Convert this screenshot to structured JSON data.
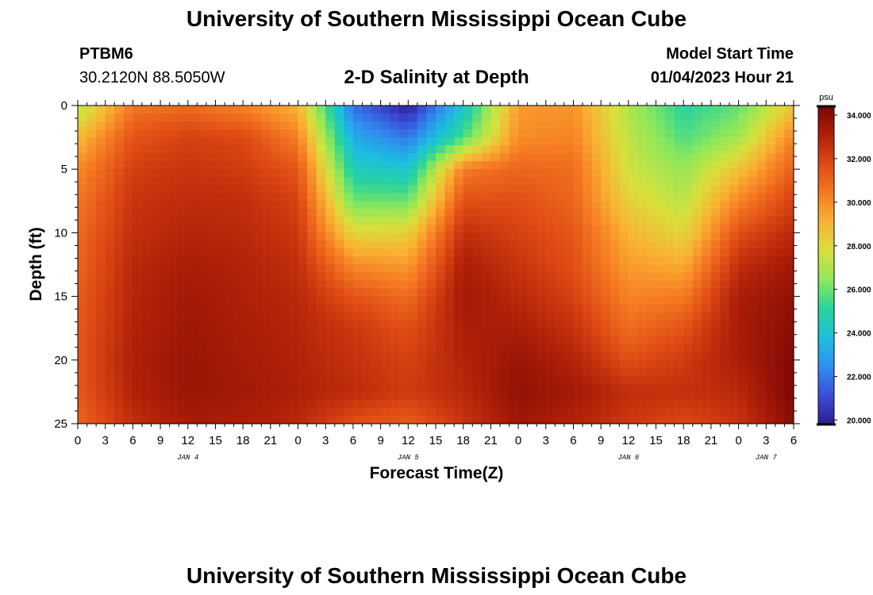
{
  "header": {
    "title": "University of Southern Mississippi Ocean Cube",
    "station_id": "PTBM6",
    "station_coords": "30.2120N  88.5050W",
    "plot_title": "2-D Salinity at Depth",
    "model_start_label": "Model Start Time",
    "model_start_value": "01/04/2023 Hour 21"
  },
  "footer": {
    "title": "University of Southern Mississippi Ocean Cube"
  },
  "colors": {
    "stops": [
      "#2c1c8e",
      "#3a4fd8",
      "#2f8ef0",
      "#1bc0dc",
      "#29d49a",
      "#8ee85a",
      "#d8e03c",
      "#f9b233",
      "#f57a22",
      "#de4a14",
      "#b02008",
      "#7a0606"
    ]
  },
  "chart_data": {
    "type": "heatmap",
    "title": "2-D Salinity at Depth",
    "xlabel": "Forecast Time(Z)",
    "ylabel": "Depth (ft)",
    "x_tick_labels": [
      "0",
      "3",
      "6",
      "9",
      "12",
      "15",
      "18",
      "21",
      "0",
      "3",
      "6",
      "9",
      "12",
      "15",
      "18",
      "21",
      "0",
      "3",
      "6",
      "9",
      "12",
      "15",
      "18",
      "21",
      "0",
      "3",
      "6"
    ],
    "x_range_hours": [
      0,
      78
    ],
    "day_labels": [
      {
        "label": "JAN 4",
        "hour": 12
      },
      {
        "label": "JAN 5",
        "hour": 36
      },
      {
        "label": "JAN 6",
        "hour": 60
      },
      {
        "label": "JAN 7",
        "hour": 75
      }
    ],
    "y_ticks": [
      0,
      5,
      10,
      15,
      20,
      25
    ],
    "y_tick_labels": [
      "0",
      "5",
      "10",
      "15",
      "20",
      "25"
    ],
    "ylim": [
      0,
      25
    ],
    "y_inverted": true,
    "colorbar": {
      "unit": "psu",
      "range": [
        19.8,
        34.4
      ],
      "tick_values": [
        34,
        32,
        30,
        28,
        26,
        24,
        22,
        20
      ],
      "tick_labels": [
        "34.000",
        "32.000",
        "30.000",
        "28.000",
        "26.000",
        "24.000",
        "22.000",
        "20.000"
      ]
    },
    "grid_hours": [
      0,
      6,
      12,
      18,
      24,
      30,
      36,
      42,
      48,
      54,
      60,
      66,
      72,
      78
    ],
    "grid_depths_ft": [
      0,
      2.5,
      5,
      7.5,
      10,
      12.5,
      15,
      17.5,
      20,
      22.5,
      25
    ],
    "salinity_psu": [
      [
        27.0,
        30.5,
        30.8,
        30.2,
        29.0,
        21.8,
        19.8,
        24.0,
        29.6,
        29.8,
        27.0,
        25.0,
        25.8,
        28.5
      ],
      [
        28.8,
        31.5,
        32.0,
        31.8,
        30.3,
        23.2,
        22.0,
        25.5,
        30.0,
        30.2,
        27.3,
        25.6,
        26.8,
        30.2
      ],
      [
        30.0,
        32.1,
        32.4,
        32.2,
        31.4,
        24.5,
        24.0,
        30.4,
        31.0,
        30.8,
        27.6,
        26.6,
        28.6,
        31.2
      ],
      [
        30.5,
        32.4,
        32.7,
        32.6,
        32.0,
        26.0,
        26.0,
        31.6,
        31.6,
        31.0,
        28.2,
        27.2,
        30.2,
        32.0
      ],
      [
        30.8,
        32.6,
        32.9,
        32.8,
        32.3,
        28.0,
        28.2,
        32.6,
        32.0,
        31.4,
        29.0,
        28.0,
        31.6,
        32.8
      ],
      [
        31.0,
        32.8,
        33.2,
        33.0,
        32.6,
        30.0,
        29.6,
        33.2,
        32.4,
        31.6,
        29.6,
        29.2,
        32.6,
        33.4
      ],
      [
        31.2,
        32.9,
        33.4,
        33.1,
        32.8,
        31.5,
        30.8,
        33.4,
        32.8,
        32.0,
        30.2,
        30.4,
        33.2,
        33.8
      ],
      [
        31.3,
        33.0,
        33.5,
        33.2,
        32.9,
        32.3,
        31.6,
        33.2,
        33.2,
        32.5,
        30.8,
        31.5,
        33.3,
        34.0
      ],
      [
        31.4,
        33.1,
        33.6,
        33.3,
        33.0,
        32.5,
        32.0,
        33.0,
        33.6,
        33.0,
        31.6,
        32.2,
        33.2,
        34.2
      ],
      [
        31.3,
        33.0,
        33.6,
        33.4,
        33.1,
        32.7,
        32.2,
        32.8,
        33.8,
        33.4,
        32.6,
        32.5,
        32.8,
        34.3
      ],
      [
        31.0,
        32.6,
        33.3,
        33.2,
        32.8,
        31.6,
        31.2,
        32.4,
        33.5,
        33.0,
        32.3,
        31.8,
        32.4,
        34.0
      ]
    ]
  }
}
